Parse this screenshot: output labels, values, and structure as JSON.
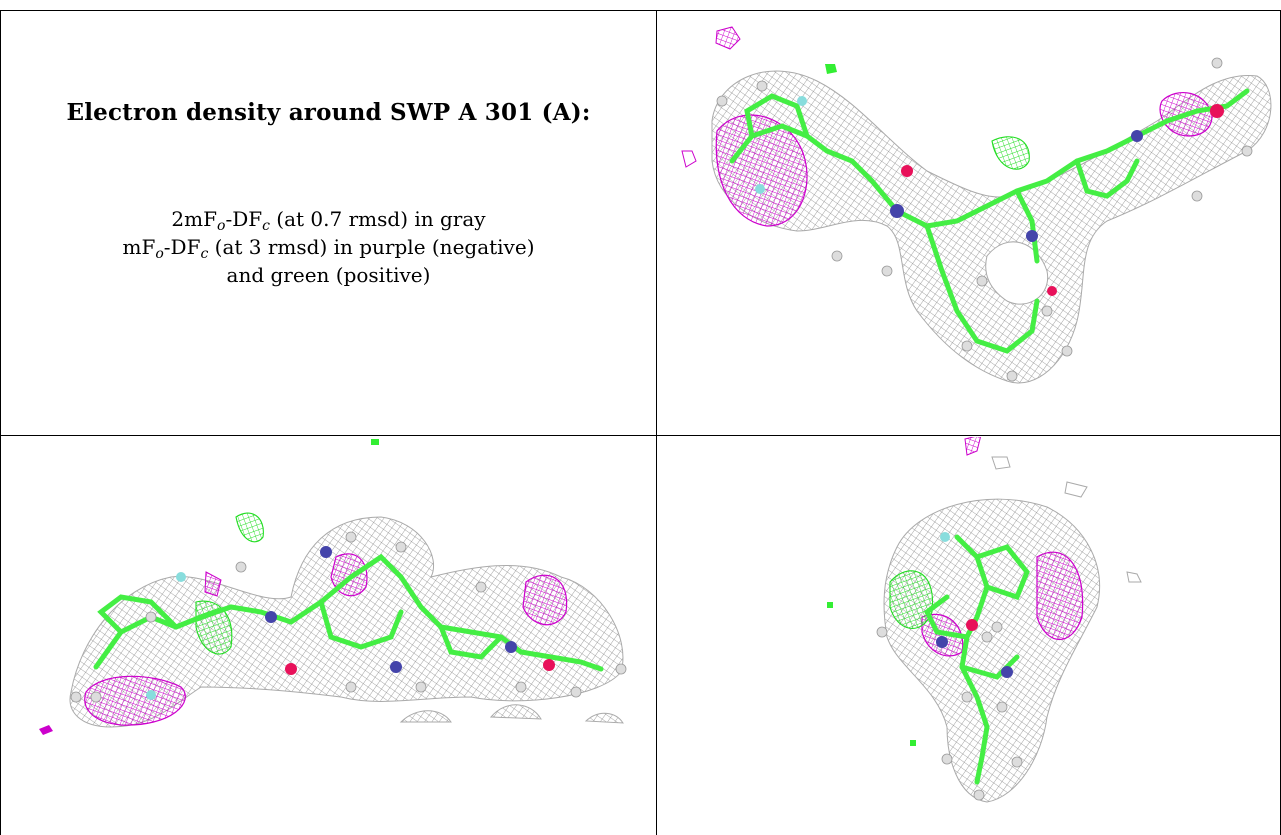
{
  "header": {
    "title": "Electron density around SWP A 301 (A):"
  },
  "legend": {
    "line1": {
      "pre": "2mF",
      "sub1": "o",
      "mid": "-DF",
      "sub2": "c",
      "post": " (at 0.7 rmsd) in gray"
    },
    "line2": {
      "pre": "mF",
      "sub1": "o",
      "mid": "-DF",
      "sub2": "c",
      "post": " (at 3 rmsd) in purple (negative)"
    },
    "line3": "and green (positive)"
  },
  "colors": {
    "map_2fofc": "#9a9a9a",
    "map_negative": "#cc00cc",
    "map_positive": "#33ee33",
    "carbon": "#44ee44",
    "nitrogen": "#4444aa",
    "oxygen": "#e8115a",
    "fluorine": "#88dddd",
    "hydrogen": "#dddddd"
  },
  "panels": [
    {
      "view": "top-right"
    },
    {
      "view": "bottom-left"
    },
    {
      "view": "bottom-right"
    }
  ]
}
